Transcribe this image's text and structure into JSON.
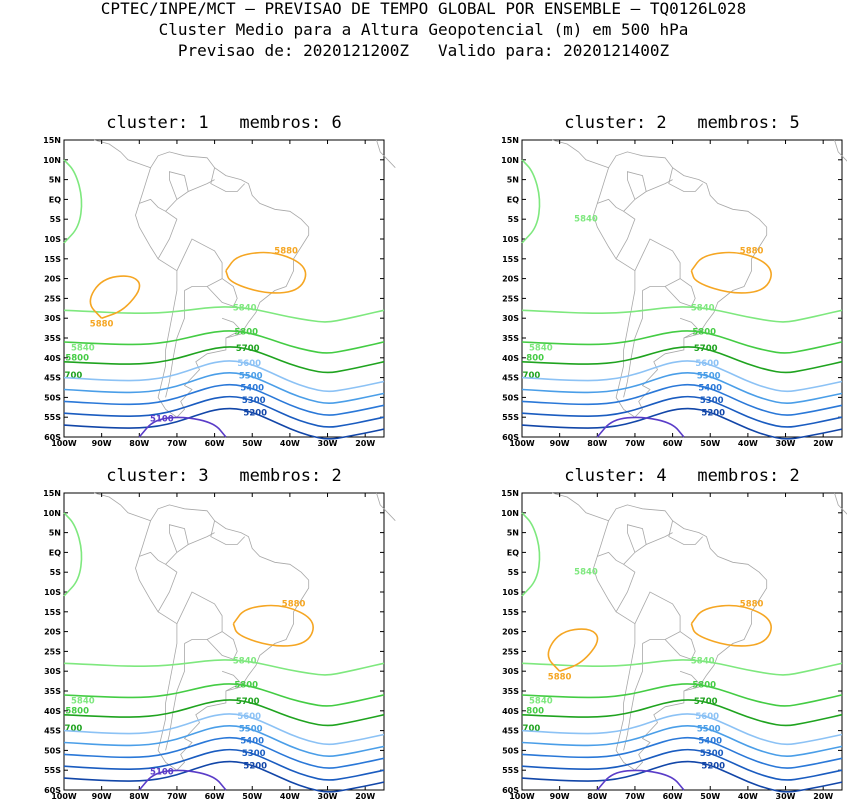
{
  "header": {
    "line1": "CPTEC/INPE/MCT – PREVISAO DE TEMPO GLOBAL POR ENSEMBLE – TQ0126L028",
    "line2": "Cluster Medio para a Altura Geopotencial (m) em 500 hPa",
    "line3": "Previsao de: 2020121200Z   Valido para: 2020121400Z"
  },
  "axes": {
    "lon_labels": [
      "100W",
      "90W",
      "80W",
      "70W",
      "60W",
      "50W",
      "40W",
      "30W",
      "20W"
    ],
    "lat_labels": [
      "15N",
      "10N",
      "5N",
      "EQ",
      "5S",
      "10S",
      "15S",
      "20S",
      "25S",
      "30S",
      "35S",
      "40S",
      "45S",
      "50S",
      "55S",
      "60S"
    ]
  },
  "colors": {
    "5880": "#f5a623",
    "5840": "#7ee87e",
    "5800": "#44cc44",
    "5700": "#1fa31f",
    "5600": "#8cc2f5",
    "5500": "#4a9ee8",
    "5400": "#2a78d8",
    "5300": "#1a5cc0",
    "5200": "#1246a8",
    "5100": "#5a3cc8"
  },
  "panels": [
    {
      "title": "cluster: 1   membros: 6"
    },
    {
      "title": "cluster: 2   membros: 5"
    },
    {
      "title": "cluster: 3   membros: 2"
    },
    {
      "title": "cluster: 4   membros: 2"
    }
  ],
  "contour_labels": {
    "c5880": "5880",
    "c5840": "5840",
    "c5800": "5800",
    "c5700": "5700",
    "c5600": "5600",
    "c5500": "5500",
    "c5400": "5400",
    "c5300": "5300",
    "c5200": "5200",
    "c5100": "5100",
    "c800": "800",
    "c700": "700"
  }
}
